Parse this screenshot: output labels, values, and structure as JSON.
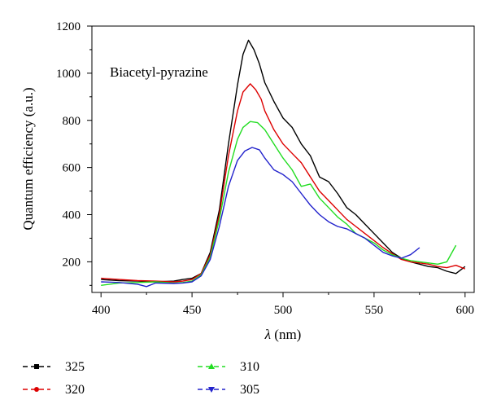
{
  "chart_data": {
    "type": "line",
    "title": "",
    "annotation": "Biacetyl-pyrazine",
    "xlabel_symbol": "λ",
    "xlabel_unit": " (nm)",
    "ylabel": "Quantum efficiency (a.u.)",
    "xlim": [
      395,
      605
    ],
    "ylim": [
      70,
      1200
    ],
    "xticks": [
      400,
      450,
      500,
      550,
      600
    ],
    "yticks": [
      200,
      400,
      600,
      800,
      1000,
      1200
    ],
    "grid": false,
    "legend_position": "bottom-left",
    "series": [
      {
        "name": "325",
        "color": "#000000",
        "marker": "square",
        "points": [
          [
            400,
            125
          ],
          [
            410,
            120
          ],
          [
            420,
            118
          ],
          [
            430,
            115
          ],
          [
            440,
            118
          ],
          [
            445,
            125
          ],
          [
            450,
            130
          ],
          [
            455,
            150
          ],
          [
            460,
            240
          ],
          [
            465,
            420
          ],
          [
            470,
            700
          ],
          [
            475,
            950
          ],
          [
            478,
            1080
          ],
          [
            481,
            1140
          ],
          [
            484,
            1100
          ],
          [
            487,
            1040
          ],
          [
            490,
            960
          ],
          [
            495,
            880
          ],
          [
            500,
            810
          ],
          [
            505,
            770
          ],
          [
            510,
            700
          ],
          [
            515,
            650
          ],
          [
            520,
            560
          ],
          [
            525,
            540
          ],
          [
            530,
            490
          ],
          [
            535,
            430
          ],
          [
            540,
            400
          ],
          [
            545,
            360
          ],
          [
            550,
            320
          ],
          [
            555,
            280
          ],
          [
            560,
            240
          ],
          [
            565,
            215
          ],
          [
            570,
            200
          ],
          [
            575,
            190
          ],
          [
            580,
            180
          ],
          [
            585,
            175
          ],
          [
            590,
            160
          ],
          [
            595,
            150
          ],
          [
            600,
            180
          ]
        ]
      },
      {
        "name": "320",
        "color": "#dd0000",
        "marker": "circle",
        "points": [
          [
            400,
            130
          ],
          [
            410,
            125
          ],
          [
            420,
            120
          ],
          [
            430,
            118
          ],
          [
            440,
            115
          ],
          [
            445,
            118
          ],
          [
            450,
            125
          ],
          [
            455,
            150
          ],
          [
            460,
            230
          ],
          [
            465,
            400
          ],
          [
            470,
            650
          ],
          [
            475,
            840
          ],
          [
            478,
            920
          ],
          [
            482,
            955
          ],
          [
            485,
            930
          ],
          [
            488,
            890
          ],
          [
            490,
            840
          ],
          [
            495,
            760
          ],
          [
            500,
            700
          ],
          [
            505,
            660
          ],
          [
            510,
            620
          ],
          [
            515,
            560
          ],
          [
            520,
            500
          ],
          [
            525,
            460
          ],
          [
            530,
            420
          ],
          [
            535,
            380
          ],
          [
            540,
            350
          ],
          [
            545,
            320
          ],
          [
            550,
            290
          ],
          [
            555,
            260
          ],
          [
            560,
            235
          ],
          [
            565,
            210
          ],
          [
            570,
            200
          ],
          [
            575,
            195
          ],
          [
            580,
            190
          ],
          [
            585,
            180
          ],
          [
            590,
            175
          ],
          [
            595,
            185
          ],
          [
            600,
            170
          ]
        ]
      },
      {
        "name": "310",
        "color": "#22dd22",
        "marker": "triangle-up",
        "points": [
          [
            400,
            100
          ],
          [
            410,
            110
          ],
          [
            420,
            112
          ],
          [
            430,
            115
          ],
          [
            440,
            110
          ],
          [
            445,
            112
          ],
          [
            450,
            118
          ],
          [
            455,
            145
          ],
          [
            460,
            220
          ],
          [
            465,
            380
          ],
          [
            470,
            580
          ],
          [
            475,
            720
          ],
          [
            478,
            770
          ],
          [
            482,
            795
          ],
          [
            486,
            790
          ],
          [
            490,
            760
          ],
          [
            495,
            700
          ],
          [
            500,
            640
          ],
          [
            505,
            590
          ],
          [
            510,
            520
          ],
          [
            515,
            530
          ],
          [
            520,
            470
          ],
          [
            525,
            430
          ],
          [
            530,
            390
          ],
          [
            535,
            360
          ],
          [
            540,
            320
          ],
          [
            545,
            300
          ],
          [
            550,
            280
          ],
          [
            555,
            250
          ],
          [
            560,
            230
          ],
          [
            565,
            215
          ],
          [
            570,
            205
          ],
          [
            575,
            200
          ],
          [
            580,
            195
          ],
          [
            585,
            190
          ],
          [
            590,
            200
          ],
          [
            595,
            270
          ]
        ]
      },
      {
        "name": "305",
        "color": "#2222cc",
        "marker": "triangle-down",
        "points": [
          [
            400,
            115
          ],
          [
            410,
            112
          ],
          [
            420,
            105
          ],
          [
            425,
            95
          ],
          [
            430,
            110
          ],
          [
            440,
            108
          ],
          [
            445,
            110
          ],
          [
            450,
            115
          ],
          [
            455,
            140
          ],
          [
            460,
            210
          ],
          [
            465,
            350
          ],
          [
            470,
            520
          ],
          [
            475,
            630
          ],
          [
            479,
            670
          ],
          [
            483,
            685
          ],
          [
            487,
            675
          ],
          [
            490,
            640
          ],
          [
            495,
            590
          ],
          [
            500,
            570
          ],
          [
            505,
            540
          ],
          [
            510,
            490
          ],
          [
            515,
            440
          ],
          [
            520,
            400
          ],
          [
            525,
            370
          ],
          [
            530,
            350
          ],
          [
            535,
            340
          ],
          [
            540,
            320
          ],
          [
            545,
            300
          ],
          [
            550,
            270
          ],
          [
            555,
            240
          ],
          [
            560,
            225
          ],
          [
            565,
            215
          ],
          [
            570,
            230
          ],
          [
            575,
            260
          ]
        ]
      }
    ]
  }
}
